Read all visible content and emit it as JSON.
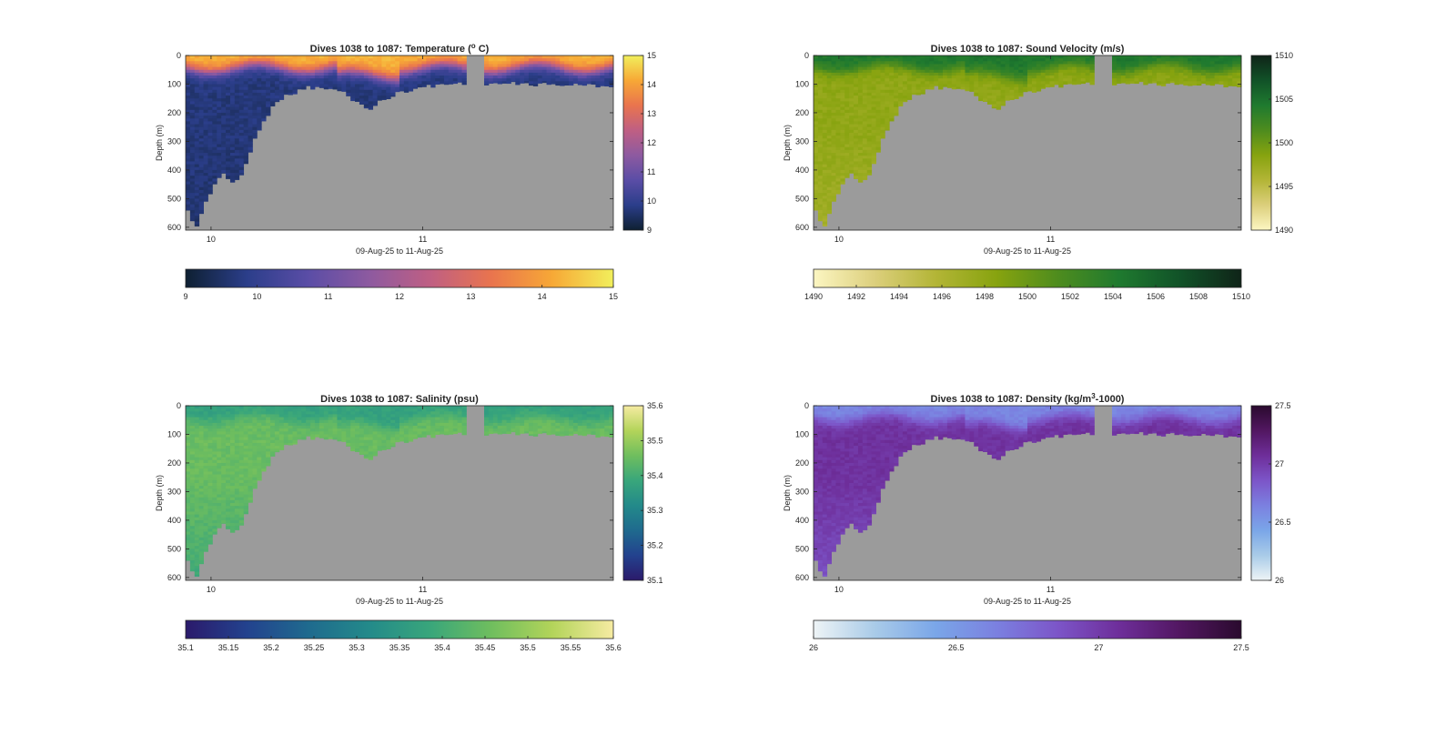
{
  "chart_data": [
    {
      "type": "heatmap",
      "title": "Dives 1038 to 1087: Temperature (",
      "title_sup": "o",
      "title_end": " C)",
      "xlabel": "09-Aug-25 to 11-Aug-25",
      "ylabel": "Depth (m)",
      "xlim": [
        9.88,
        11.9
      ],
      "ylim": [
        0,
        610
      ],
      "xticks": [
        10,
        11
      ],
      "yticks": [
        0,
        100,
        200,
        300,
        400,
        500,
        600
      ],
      "clim": [
        9,
        15
      ],
      "colorbar_ticks": [
        9,
        10,
        11,
        12,
        13,
        14,
        15
      ],
      "horizontal_colorbar_ticks": [
        9,
        10,
        11,
        12,
        13,
        14,
        15
      ],
      "colormap": [
        "#0e2032",
        "#2b3e8a",
        "#5a4da6",
        "#8d5aa0",
        "#bf5f83",
        "#e9744e",
        "#f7a836",
        "#f1ef5c"
      ],
      "surface_value": 14.3,
      "deep_value": 9.7,
      "profile": {
        "time": [
          9.88,
          9.93,
          9.97,
          10.02,
          10.06,
          10.1,
          10.15,
          10.2,
          10.3,
          10.45,
          10.6,
          10.65,
          10.7,
          10.75,
          10.8,
          10.9,
          11.0,
          11.1,
          11.2,
          11.9
        ],
        "depth": [
          530,
          600,
          520,
          440,
          410,
          450,
          410,
          300,
          160,
          110,
          120,
          140,
          170,
          185,
          160,
          125,
          110,
          100,
          95,
          105
        ]
      },
      "gap": [
        11.2,
        11.28
      ]
    },
    {
      "type": "heatmap",
      "title": "Dives 1038 to 1087: Sound Velocity (m/s)",
      "xlabel": "09-Aug-25 to 11-Aug-25",
      "ylabel": "Depth (m)",
      "xlim": [
        9.88,
        11.9
      ],
      "ylim": [
        0,
        610
      ],
      "xticks": [
        10,
        11
      ],
      "yticks": [
        0,
        100,
        200,
        300,
        400,
        500,
        600
      ],
      "clim": [
        1490,
        1510
      ],
      "colorbar_ticks": [
        1490,
        1495,
        1500,
        1505,
        1510
      ],
      "horizontal_colorbar_ticks": [
        1490,
        1492,
        1494,
        1496,
        1498,
        1500,
        1502,
        1504,
        1506,
        1508,
        1510
      ],
      "colormap": [
        "#fcf6c2",
        "#dccf7c",
        "#b3b536",
        "#87a30f",
        "#4e8c1e",
        "#1f7a2f",
        "#115228",
        "#0f2418"
      ],
      "surface_value": 1504.5,
      "deep_value": 1498,
      "profile": {
        "time": [
          9.88,
          9.93,
          9.97,
          10.02,
          10.06,
          10.1,
          10.15,
          10.2,
          10.3,
          10.45,
          10.6,
          10.65,
          10.7,
          10.75,
          10.8,
          10.9,
          11.0,
          11.1,
          11.2,
          11.9
        ],
        "depth": [
          530,
          600,
          520,
          440,
          410,
          450,
          410,
          300,
          160,
          110,
          120,
          140,
          170,
          185,
          160,
          125,
          110,
          100,
          95,
          105
        ]
      },
      "gap": [
        11.2,
        11.28
      ]
    },
    {
      "type": "heatmap",
      "title": "Dives 1038 to 1087: Salinity (psu)",
      "xlabel": "09-Aug-25 to 11-Aug-25",
      "ylabel": "Depth (m)",
      "xlim": [
        9.88,
        11.9
      ],
      "ylim": [
        0,
        610
      ],
      "xticks": [
        10,
        11
      ],
      "yticks": [
        0,
        100,
        200,
        300,
        400,
        500,
        600
      ],
      "clim": [
        35.1,
        35.6
      ],
      "colorbar_ticks": [
        35.1,
        35.2,
        35.3,
        35.4,
        35.5,
        35.6
      ],
      "horizontal_colorbar_ticks": [
        35.1,
        35.15,
        35.2,
        35.25,
        35.3,
        35.35,
        35.4,
        35.45,
        35.5,
        35.55,
        35.6
      ],
      "colormap": [
        "#2b1a6b",
        "#23428e",
        "#1f6a8e",
        "#238a8a",
        "#39a67b",
        "#6fbe5e",
        "#b3d45a",
        "#f6eba2"
      ],
      "surface_value": 35.37,
      "deep_value": 35.45,
      "profile": {
        "time": [
          9.88,
          9.93,
          9.97,
          10.02,
          10.06,
          10.1,
          10.15,
          10.2,
          10.3,
          10.45,
          10.6,
          10.65,
          10.7,
          10.75,
          10.8,
          10.9,
          11.0,
          11.1,
          11.2,
          11.9
        ],
        "depth": [
          530,
          600,
          520,
          440,
          410,
          450,
          410,
          300,
          160,
          110,
          120,
          140,
          170,
          185,
          160,
          125,
          110,
          100,
          95,
          105
        ]
      },
      "gap": [
        11.2,
        11.28
      ]
    },
    {
      "type": "heatmap",
      "title": "Dives 1038 to 1087: Density (kg/m",
      "title_sup": "3",
      "title_end": "-1000)",
      "xlabel": "09-Aug-25 to 11-Aug-25",
      "ylabel": "Depth (m)",
      "xlim": [
        9.88,
        11.9
      ],
      "ylim": [
        0,
        610
      ],
      "xticks": [
        10,
        11
      ],
      "yticks": [
        0,
        100,
        200,
        300,
        400,
        500,
        600
      ],
      "clim": [
        26,
        27.5
      ],
      "colorbar_ticks": [
        26,
        26.5,
        27,
        27.5
      ],
      "horizontal_colorbar_ticks": [
        26,
        26.5,
        27,
        27.5
      ],
      "colormap": [
        "#eef4f6",
        "#a9cbe8",
        "#7aa6e8",
        "#7b80e0",
        "#7c55c8",
        "#6e2e9a",
        "#521761",
        "#2a0a2e"
      ],
      "surface_value": 26.6,
      "deep_value": 27.05,
      "profile": {
        "time": [
          9.88,
          9.93,
          9.97,
          10.02,
          10.06,
          10.1,
          10.15,
          10.2,
          10.3,
          10.45,
          10.6,
          10.65,
          10.7,
          10.75,
          10.8,
          10.9,
          11.0,
          11.1,
          11.2,
          11.9
        ],
        "depth": [
          530,
          600,
          520,
          440,
          410,
          450,
          410,
          300,
          160,
          110,
          120,
          140,
          170,
          185,
          160,
          125,
          110,
          100,
          95,
          105
        ]
      },
      "gap": [
        11.2,
        11.28
      ]
    }
  ],
  "colors": {
    "no_data": "#9b9b9b",
    "axis": "#262626",
    "background": "#ffffff"
  }
}
